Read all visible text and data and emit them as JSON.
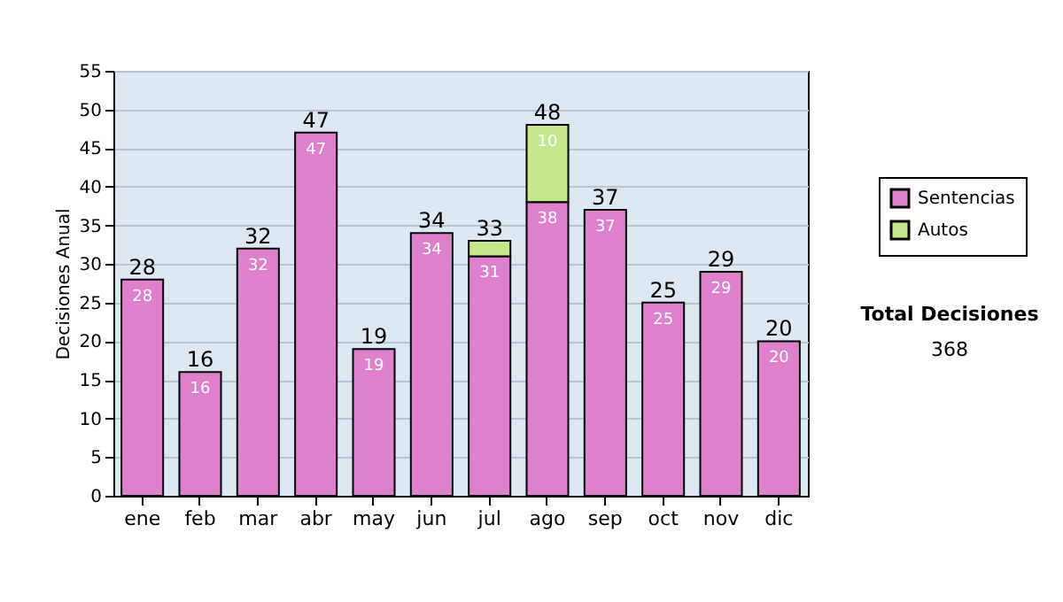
{
  "chart_data": {
    "type": "bar",
    "stacked": true,
    "ylabel": "Decisiones Anual",
    "categories": [
      "ene",
      "feb",
      "mar",
      "abr",
      "may",
      "jun",
      "jul",
      "ago",
      "sep",
      "oct",
      "nov",
      "dic"
    ],
    "series": [
      {
        "name": "Sentencias",
        "color": "#df80cc",
        "values": [
          28,
          16,
          32,
          47,
          19,
          34,
          31,
          38,
          37,
          25,
          29,
          20
        ],
        "value_labels": [
          "28",
          "16",
          "32",
          "47",
          "19",
          "34",
          "31",
          "38",
          "37",
          "25",
          "29",
          "20"
        ]
      },
      {
        "name": "Autos",
        "color": "#c6e88c",
        "values": [
          null,
          null,
          null,
          null,
          null,
          null,
          2,
          10,
          null,
          null,
          null,
          null
        ],
        "value_labels": [
          null,
          null,
          null,
          null,
          null,
          null,
          null,
          "10",
          null,
          null,
          null,
          null
        ]
      }
    ],
    "totals": [
      "28",
      "16",
      "32",
      "47",
      "19",
      "34",
      "33",
      "48",
      "37",
      "25",
      "29",
      "20"
    ],
    "ylim": [
      0,
      55
    ],
    "yticks": [
      0,
      5,
      10,
      15,
      20,
      25,
      30,
      35,
      40,
      45,
      50,
      55
    ],
    "grid": "y",
    "legend": "right",
    "annotations": [
      "Total Decisiones",
      "368"
    ]
  }
}
